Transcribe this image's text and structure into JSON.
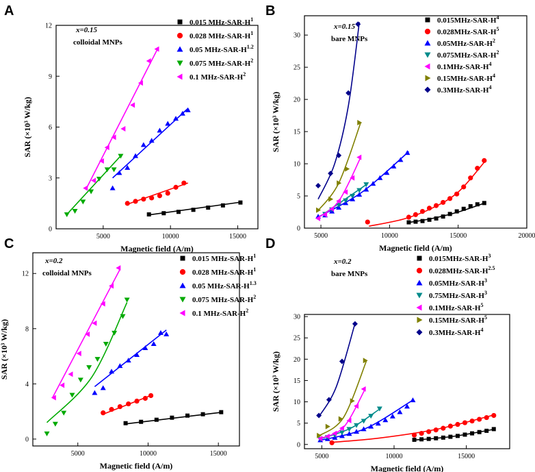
{
  "figure": {
    "xlabel": "Magnetic field (A/m)",
    "ylabel": "SAR (×10³ W/kg)"
  },
  "chart_data": [
    {
      "type": "scatter",
      "panel": "A",
      "annotation_x": "x=0.15",
      "annotation": "colloidal MNPs",
      "xlabel": "Magnetic field (A/m)",
      "ylabel": "SAR (×10³ W/kg)",
      "xlim": [
        1500,
        16500
      ],
      "ylim": [
        0,
        12
      ],
      "xticks": [
        5000,
        10000,
        15000
      ],
      "yticks": [
        0,
        3,
        6,
        9,
        12
      ],
      "series": [
        {
          "name": "0.015 MHz-SAR-H",
          "sup": "1",
          "color": "#000000",
          "marker": "square",
          "x": [
            8400,
            9500,
            10600,
            11700,
            12800,
            13900,
            15200
          ],
          "y": [
            0.85,
            0.92,
            1.0,
            1.12,
            1.25,
            1.38,
            1.55
          ],
          "fit": [
            [
              8400,
              0.82
            ],
            [
              15300,
              1.58
            ]
          ]
        },
        {
          "name": "0.028 MHz-SAR-H",
          "sup": "1",
          "color": "#ff0000",
          "marker": "circle",
          "x": [
            6800,
            7400,
            8000,
            8600,
            9200,
            9800,
            10400,
            11000
          ],
          "y": [
            1.5,
            1.62,
            1.75,
            1.82,
            1.95,
            2.1,
            2.45,
            2.7
          ],
          "fit": [
            [
              6800,
              1.45
            ],
            [
              11300,
              2.7
            ]
          ]
        },
        {
          "name": "0.05 MHz-SAR-H",
          "sup": "1.2",
          "color": "#0000ff",
          "marker": "triangle-up",
          "x": [
            5700,
            6200,
            6800,
            7400,
            8000,
            8600,
            9200,
            9800,
            10400,
            10900,
            11300
          ],
          "y": [
            2.4,
            3.3,
            3.6,
            4.3,
            4.95,
            5.2,
            5.8,
            6.2,
            6.5,
            6.8,
            7.0
          ],
          "fit": [
            [
              5700,
              3.0
            ],
            [
              11300,
              7.1
            ]
          ]
        },
        {
          "name": "0.075 MHz-SAR-H",
          "sup": "2",
          "color": "#00aa00",
          "marker": "triangle-down",
          "x": [
            2300,
            2900,
            3500,
            4100,
            4700,
            5300,
            5800,
            6300
          ],
          "y": [
            0.85,
            1.05,
            1.6,
            2.2,
            2.95,
            3.5,
            3.5,
            4.3
          ],
          "fit": [
            [
              2300,
              0.85
            ],
            [
              6300,
              4.3
            ]
          ]
        },
        {
          "name": "0.1 MHz-SAR-H",
          "sup": "2",
          "color": "#ff00ff",
          "marker": "triangle-left",
          "x": [
            3700,
            4300,
            4900,
            5300,
            5800,
            6500,
            7200,
            7800,
            8400,
            9000
          ],
          "y": [
            2.4,
            2.85,
            4.0,
            4.8,
            5.4,
            5.9,
            7.3,
            8.6,
            9.9,
            10.6
          ],
          "fit": [
            [
              3700,
              2.3
            ],
            [
              9100,
              10.7
            ]
          ]
        }
      ]
    },
    {
      "type": "scatter",
      "panel": "B",
      "annotation_x": "x=0.15",
      "annotation": "bare MNPs",
      "xlabel": "Magnetic field (A/m)",
      "ylabel": "SAR (×10³ W/kg)",
      "xlim": [
        3800,
        20000
      ],
      "ylim": [
        0,
        33
      ],
      "xticks": [
        5000,
        10000,
        15000,
        20000
      ],
      "yticks": [
        0,
        5,
        10,
        15,
        20,
        25,
        30
      ],
      "series": [
        {
          "name": "0.015MHz-SAR-H",
          "sup": "4",
          "color": "#000000",
          "marker": "square",
          "x": [
            11400,
            11900,
            12400,
            12900,
            13400,
            13900,
            14400,
            14900,
            15400,
            15900,
            16400,
            16900
          ],
          "y": [
            0.9,
            1.0,
            1.1,
            1.3,
            1.5,
            1.8,
            2.2,
            2.6,
            3.0,
            3.4,
            3.7,
            3.9
          ],
          "fit": [
            [
              11300,
              0.85
            ],
            [
              13000,
              1.45
            ],
            [
              15000,
              2.5
            ],
            [
              17000,
              3.95
            ]
          ]
        },
        {
          "name": "0.028MHz-SAR-H",
          "sup": "5",
          "color": "#ff0000",
          "marker": "circle",
          "x": [
            8400,
            11400,
            11900,
            12400,
            12900,
            13400,
            13900,
            14400,
            14900,
            15400,
            15900,
            16400,
            16900
          ],
          "y": [
            0.95,
            1.7,
            2.1,
            2.6,
            3.1,
            3.5,
            4.0,
            4.6,
            5.3,
            6.4,
            7.8,
            9.3,
            10.5
          ],
          "fit": [
            [
              8500,
              0.3
            ],
            [
              11000,
              1.4
            ],
            [
              13000,
              3.0
            ],
            [
              15000,
              5.6
            ],
            [
              17000,
              10.5
            ]
          ]
        },
        {
          "name": "0.05MHz-SAR-H",
          "sup": "2",
          "color": "#0000ff",
          "marker": "triangle-up",
          "x": [
            4800,
            5300,
            5800,
            6300,
            6800,
            7300,
            7800,
            8300,
            8800,
            9300,
            9800,
            10300,
            10800,
            11300
          ],
          "y": [
            1.8,
            2.0,
            2.6,
            3.2,
            3.9,
            4.5,
            5.2,
            6.0,
            6.9,
            7.8,
            8.6,
            9.6,
            10.6,
            11.7
          ],
          "fit": [
            [
              4700,
              1.6
            ],
            [
              8000,
              5.6
            ],
            [
              11400,
              11.9
            ]
          ]
        },
        {
          "name": "0.075MHz-SAR-H",
          "sup": "2",
          "color": "#008b8b",
          "marker": "triangle-down",
          "x": [
            5300,
            5800,
            6300,
            6800,
            7300,
            7800,
            8300
          ],
          "y": [
            2.2,
            2.9,
            3.6,
            4.3,
            5.0,
            5.9,
            6.8
          ],
          "fit": [
            [
              5000,
              1.9
            ],
            [
              8400,
              6.9
            ]
          ]
        },
        {
          "name": "0.1MHz-SAR-H",
          "sup": "4",
          "color": "#ff00ff",
          "marker": "triangle-left",
          "x": [
            4800,
            5300,
            5800,
            6300,
            6800,
            7300,
            7800
          ],
          "y": [
            1.5,
            2.1,
            3.0,
            4.2,
            5.6,
            7.8,
            11.0
          ],
          "fit": [
            [
              4700,
              1.5
            ],
            [
              6300,
              4.2
            ],
            [
              7900,
              11.0
            ]
          ]
        },
        {
          "name": "0.15MHz-SAR-H",
          "sup": "4",
          "color": "#808000",
          "marker": "triangle-right",
          "x": [
            4800,
            5700,
            6300,
            6900,
            7800
          ],
          "y": [
            2.8,
            4.5,
            7.0,
            9.2,
            16.4
          ],
          "fit": [
            [
              4700,
              2.5
            ],
            [
              6300,
              7.0
            ],
            [
              7900,
              16.4
            ]
          ]
        },
        {
          "name": "0.3MHz-SAR-H",
          "sup": "4",
          "color": "#00008b",
          "marker": "diamond",
          "x": [
            4800,
            5700,
            6300,
            7000,
            7700
          ],
          "y": [
            6.6,
            8.5,
            11.3,
            21.0,
            31.7
          ],
          "fit": [
            [
              4800,
              4.5
            ],
            [
              6000,
              10.0
            ],
            [
              7000,
              19.0
            ],
            [
              7800,
              32.0
            ]
          ]
        }
      ]
    },
    {
      "type": "scatter",
      "panel": "C",
      "annotation_x": "x=0.2",
      "annotation": "colloidal MNPs",
      "xlabel": "Magnetic field (A/m)",
      "ylabel": "SAR (×10³ W/kg)",
      "xlim": [
        1800,
        16500
      ],
      "ylim": [
        -0.5,
        13.5
      ],
      "xticks": [
        5000,
        10000,
        15000
      ],
      "yticks": [
        0,
        4,
        8,
        12
      ],
      "series": [
        {
          "name": "0.015 MHz-SAR-H",
          "sup": "1",
          "color": "#000000",
          "marker": "square",
          "x": [
            8400,
            9500,
            10600,
            11700,
            12800,
            13900,
            15200
          ],
          "y": [
            1.15,
            1.25,
            1.4,
            1.55,
            1.7,
            1.8,
            1.95
          ],
          "fit": [
            [
              8400,
              1.1
            ],
            [
              15300,
              1.95
            ]
          ]
        },
        {
          "name": "0.028 MHz-SAR-H",
          "sup": "1",
          "color": "#ff0000",
          "marker": "circle",
          "x": [
            6800,
            7400,
            8000,
            8600,
            9200,
            9800,
            10200
          ],
          "y": [
            1.9,
            2.15,
            2.35,
            2.55,
            2.75,
            2.95,
            3.15
          ],
          "fit": [
            [
              6800,
              1.8
            ],
            [
              10300,
              3.2
            ]
          ]
        },
        {
          "name": "0.05 MHz-SAR-H",
          "sup": "1.3",
          "color": "#0000ff",
          "marker": "triangle-up",
          "x": [
            6200,
            6800,
            7400,
            8000,
            8600,
            9200,
            9800,
            10400,
            10900,
            11300
          ],
          "y": [
            3.35,
            3.7,
            4.9,
            5.3,
            5.7,
            6.1,
            6.6,
            6.9,
            7.7,
            7.6
          ],
          "fit": [
            [
              6200,
              3.8
            ],
            [
              11300,
              7.9
            ]
          ]
        },
        {
          "name": "0.075 MHz-SAR-H",
          "sup": "2",
          "color": "#00aa00",
          "marker": "triangle-down",
          "x": [
            2800,
            3400,
            4000,
            4600,
            5200,
            5800,
            6400,
            7000,
            7600,
            8200,
            8500
          ],
          "y": [
            0.4,
            1.1,
            1.9,
            3.2,
            4.3,
            5.2,
            5.8,
            6.9,
            7.7,
            8.9,
            10.1
          ],
          "fit": [
            [
              2800,
              1.2
            ],
            [
              6000,
              4.5
            ],
            [
              8500,
              9.9
            ]
          ]
        },
        {
          "name": "0.1 MHz-SAR-H",
          "sup": "2",
          "color": "#ff00ff",
          "marker": "triangle-left",
          "x": [
            3300,
            3900,
            4500,
            5100,
            5700,
            6200,
            6800,
            7400,
            7900
          ],
          "y": [
            3.0,
            3.9,
            4.7,
            6.2,
            7.6,
            8.4,
            9.8,
            11.1,
            12.4
          ],
          "fit": [
            [
              3200,
              3.0
            ],
            [
              8000,
              12.3
            ]
          ]
        }
      ]
    },
    {
      "type": "scatter",
      "panel": "D",
      "annotation_x": "x=0.2",
      "annotation": "bare MNPs",
      "xlabel": "Magnetic field (A/m)",
      "ylabel": "SAR (×10³ W/kg)",
      "xlim": [
        3800,
        18000
      ],
      "ylim": [
        -1,
        30.5
      ],
      "xticks": [
        5000,
        10000,
        15000
      ],
      "yticks": [
        0,
        5,
        10,
        15,
        20,
        25,
        30
      ],
      "series": [
        {
          "name": "0.015MHz-SAR-H",
          "sup": "3",
          "color": "#000000",
          "marker": "square",
          "x": [
            11400,
            11900,
            12400,
            12900,
            13400,
            13900,
            14400,
            14900,
            15400,
            15900,
            16400,
            16900
          ],
          "y": [
            1.1,
            1.2,
            1.3,
            1.45,
            1.6,
            1.8,
            2.0,
            2.3,
            2.6,
            2.9,
            3.2,
            3.6
          ],
          "fit": [
            [
              11300,
              1.0
            ],
            [
              14000,
              1.85
            ],
            [
              17000,
              3.6
            ]
          ]
        },
        {
          "name": "0.028MHz-SAR-H",
          "sup": "2.5",
          "color": "#ff0000",
          "marker": "circle",
          "x": [
            5700,
            11400,
            11900,
            12400,
            12900,
            13400,
            13900,
            14400,
            14900,
            15400,
            15900,
            16400,
            16900
          ],
          "y": [
            0.4,
            2.2,
            2.6,
            3.0,
            3.4,
            3.8,
            4.3,
            4.7,
            5.1,
            5.5,
            5.9,
            6.3,
            6.8
          ],
          "fit": [
            [
              5700,
              0.5
            ],
            [
              9000,
              1.5
            ],
            [
              13000,
              3.6
            ],
            [
              17000,
              7.0
            ]
          ]
        },
        {
          "name": "0.05MHz-SAR-H",
          "sup": "3",
          "color": "#0000ff",
          "marker": "triangle-up",
          "x": [
            4900,
            5400,
            5900,
            6400,
            6900,
            7400,
            7900,
            8400,
            8900,
            9400,
            9900,
            10400,
            10900,
            11300
          ],
          "y": [
            1.0,
            1.3,
            1.6,
            2.0,
            2.5,
            3.0,
            3.6,
            4.2,
            4.9,
            5.7,
            6.6,
            7.6,
            8.9,
            10.4
          ],
          "fit": [
            [
              4800,
              0.9
            ],
            [
              8000,
              3.7
            ],
            [
              11300,
              10.4
            ]
          ]
        },
        {
          "name": "0.75MHz-SAR-H",
          "sup": "3",
          "color": "#008b8b",
          "marker": "triangle-down",
          "x": [
            4900,
            5400,
            5900,
            6400,
            6900,
            7400,
            7900,
            8400,
            9000
          ],
          "y": [
            1.3,
            1.7,
            2.2,
            2.8,
            3.6,
            4.5,
            5.5,
            6.7,
            8.4
          ],
          "fit": [
            [
              4800,
              1.2
            ],
            [
              7000,
              3.8
            ],
            [
              9000,
              8.3
            ]
          ]
        },
        {
          "name": "0.1MHz-SAR-H",
          "sup": "5",
          "color": "#ff00ff",
          "marker": "triangle-left",
          "x": [
            4900,
            5400,
            5900,
            6400,
            6900,
            7400,
            7900
          ],
          "y": [
            1.4,
            1.9,
            2.6,
            3.8,
            5.6,
            9.0,
            13.0
          ],
          "fit": [
            [
              4800,
              1.3
            ],
            [
              6500,
              4.0
            ],
            [
              8000,
              13.0
            ]
          ]
        },
        {
          "name": "0.15MHz-SAR-H",
          "sup": "5",
          "color": "#808000",
          "marker": "triangle-right",
          "x": [
            4800,
            5400,
            6300,
            7100,
            8000
          ],
          "y": [
            2.1,
            4.2,
            6.0,
            10.2,
            19.7
          ],
          "fit": [
            [
              4800,
              2.0
            ],
            [
              6500,
              6.3
            ],
            [
              8100,
              19.7
            ]
          ]
        },
        {
          "name": "0.3MHz-SAR-H",
          "sup": "4",
          "color": "#00008b",
          "marker": "diamond",
          "x": [
            4800,
            5500,
            6400,
            7300
          ],
          "y": [
            6.8,
            10.5,
            19.5,
            28.3
          ],
          "fit": [
            [
              4800,
              6.5
            ],
            [
              6000,
              13.5
            ],
            [
              7300,
              28.4
            ]
          ]
        }
      ]
    }
  ]
}
